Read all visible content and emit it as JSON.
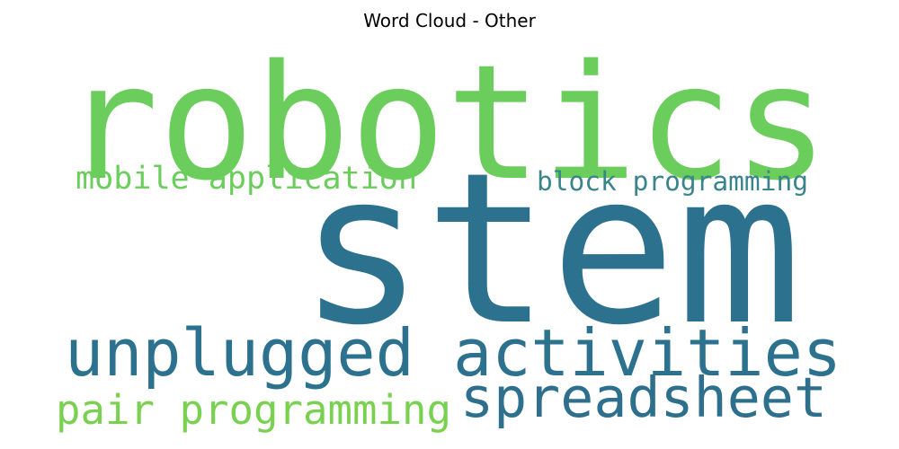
{
  "chart_data": {
    "type": "wordcloud",
    "title": "Word Cloud - Other",
    "words": [
      {
        "text": "robotics",
        "weight": 100,
        "color": "#6acd5c"
      },
      {
        "text": "stem",
        "weight": 96,
        "color": "#2c718e"
      },
      {
        "text": "unplugged activities",
        "weight": 42,
        "color": "#2c718e"
      },
      {
        "text": "spreadsheet",
        "weight": 40,
        "color": "#2e6f8e"
      },
      {
        "text": "pair programming",
        "weight": 30,
        "color": "#7ad151"
      },
      {
        "text": "mobile application",
        "weight": 22,
        "color": "#6acd5c"
      },
      {
        "text": "block programming",
        "weight": 18,
        "color": "#3a848c"
      }
    ]
  }
}
